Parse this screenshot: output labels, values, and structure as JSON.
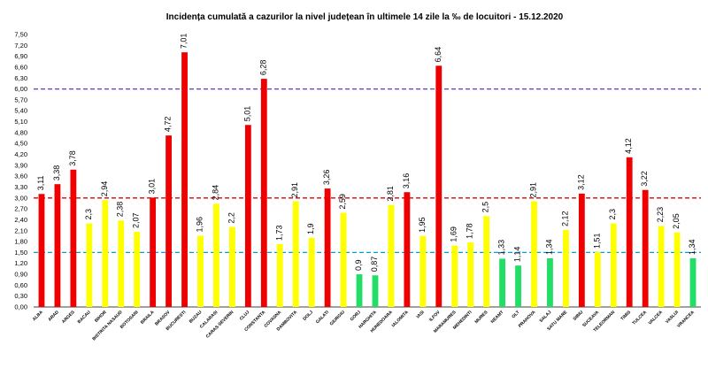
{
  "chart_data": {
    "type": "bar",
    "title": "Incidența cumulată a cazurilor la nivel județean în ultimele 14 zile    la ‰ de locuitori  - 15.12.2020",
    "xlabel": "",
    "ylabel": "",
    "ylim": [
      0,
      7.5
    ],
    "yticks": [
      "0,00",
      "0,30",
      "0,60",
      "0,90",
      "1,20",
      "1,50",
      "1,80",
      "2,10",
      "2,40",
      "2,70",
      "3,00",
      "3,30",
      "3,60",
      "3,90",
      "4,20",
      "4,50",
      "4,80",
      "5,10",
      "5,40",
      "5,70",
      "6,00",
      "6,30",
      "6,60",
      "6,90",
      "7,20",
      "7,50"
    ],
    "grid": false,
    "legend": "none",
    "categories": [
      "ALBA",
      "ARAD",
      "ARGES",
      "BACAU",
      "BIHOR",
      "BISTRITA NASAUD",
      "BOTOSANI",
      "BRAILA",
      "BRASOV",
      "BUCURESTI",
      "BUZAU",
      "CALARASI",
      "CARAS-SEVERIN",
      "CLUJ",
      "CONSTANTA",
      "COVASNA",
      "DAMBOVITA",
      "DOLJ",
      "GALATI",
      "GIURGIU",
      "GORJ",
      "HARGHITA",
      "HUNEDOARA",
      "IALOMITA",
      "IASI",
      "ILFOV",
      "MARAMURES",
      "MEHEDINTI",
      "MURES",
      "NEAMT",
      "OLT",
      "PRAHOVA",
      "SALAJ",
      "SATU MARE",
      "SIBIU",
      "SUCEAVA",
      "TELEORMAN",
      "TIMIS",
      "TULCEA",
      "VALCEA",
      "VASLUI",
      "VRANCEA"
    ],
    "values": [
      3.11,
      3.38,
      3.78,
      2.3,
      2.94,
      2.38,
      2.07,
      3.01,
      4.72,
      7.01,
      1.96,
      2.84,
      2.2,
      5.01,
      6.28,
      1.73,
      2.91,
      1.9,
      3.26,
      2.59,
      0.9,
      0.87,
      2.81,
      3.16,
      1.95,
      6.64,
      1.69,
      1.78,
      2.5,
      1.33,
      1.14,
      2.91,
      1.34,
      2.12,
      3.12,
      1.51,
      2.3,
      4.12,
      3.22,
      2.23,
      2.05,
      1.34
    ],
    "data_labels": [
      "3,11",
      "3,38",
      "3,78",
      "2,3",
      "2,94",
      "2,38",
      "2,07",
      "3,01",
      "4,72",
      "7,01",
      "1,96",
      "2,84",
      "2,2",
      "5,01",
      "6,28",
      "1,73",
      "2,91",
      "1,9",
      "3,26",
      "2,59",
      "0,9",
      "0,87",
      "2,81",
      "3,16",
      "1,95",
      "6,64",
      "1,69",
      "1,78",
      "2,5",
      "1,33",
      "1,14",
      "2,91",
      "1,34",
      "2,12",
      "3,12",
      "1,51",
      "2,3",
      "4,12",
      "3,22",
      "2,23",
      "2,05",
      "1,34"
    ],
    "thresholds": [
      {
        "value": 1.5,
        "color": "#00a0e0"
      },
      {
        "value": 3.0,
        "color": "#e00000"
      },
      {
        "value": 6.0,
        "color": "#6a3aa8"
      }
    ],
    "colors": {
      "green": "#22dd66",
      "yellow": "#ffff00",
      "red": "#ee0000"
    }
  }
}
